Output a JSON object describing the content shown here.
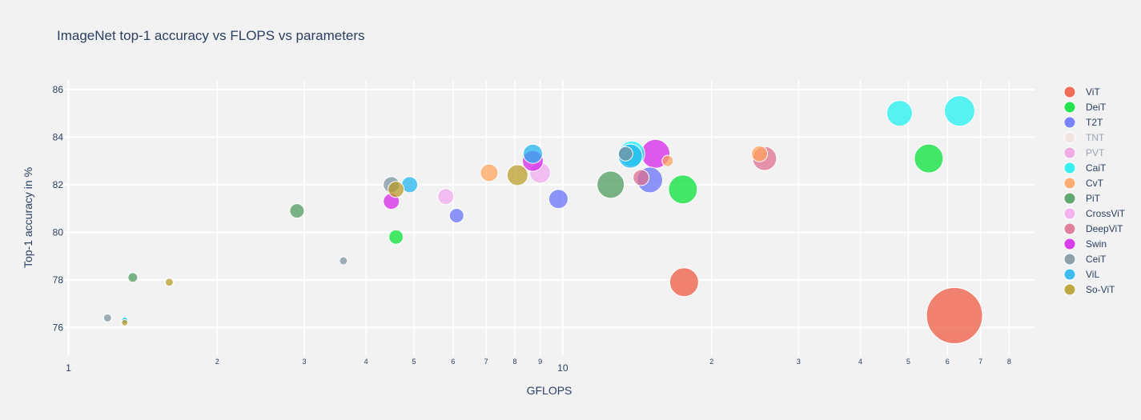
{
  "chart_data": {
    "type": "scatter",
    "title": "ImageNet top-1 accuracy vs FLOPS vs parameters",
    "xlabel": "GFLOPS",
    "ylabel": "Top-1 accuracy in %",
    "x_scale": "log",
    "xlim": [
      0.98,
      90
    ],
    "ylim": [
      74.8,
      86.4
    ],
    "x_major_ticks": [
      {
        "value": 1,
        "label": "1"
      },
      {
        "value": 10,
        "label": "10"
      }
    ],
    "x_minor_ticks": [
      {
        "value": 2,
        "label": "2"
      },
      {
        "value": 3,
        "label": "3"
      },
      {
        "value": 4,
        "label": "4"
      },
      {
        "value": 5,
        "label": "5"
      },
      {
        "value": 6,
        "label": "6"
      },
      {
        "value": 7,
        "label": "7"
      },
      {
        "value": 8,
        "label": "8"
      },
      {
        "value": 9,
        "label": "9"
      },
      {
        "value": 20,
        "label": "2"
      },
      {
        "value": 30,
        "label": "3"
      },
      {
        "value": 40,
        "label": "4"
      },
      {
        "value": 50,
        "label": "5"
      },
      {
        "value": 60,
        "label": "6"
      },
      {
        "value": 70,
        "label": "7"
      },
      {
        "value": 80,
        "label": "8"
      }
    ],
    "y_ticks": [
      {
        "value": 76,
        "label": "76"
      },
      {
        "value": 78,
        "label": "78"
      },
      {
        "value": 80,
        "label": "80"
      },
      {
        "value": 82,
        "label": "82"
      },
      {
        "value": 84,
        "label": "84"
      },
      {
        "value": 86,
        "label": "86"
      }
    ],
    "grid": true,
    "legend_position": "right",
    "size_encoding": "parameters",
    "series": [
      {
        "name": "ViT",
        "color": "#ef553b",
        "legend_muted": false,
        "points": [
          {
            "x": 17.6,
            "y": 77.9,
            "r": 18
          },
          {
            "x": 62,
            "y": 76.5,
            "r": 35
          }
        ]
      },
      {
        "name": "DeiT",
        "color": "#00e032",
        "legend_muted": false,
        "points": [
          {
            "x": 4.6,
            "y": 79.8,
            "r": 9
          },
          {
            "x": 17.5,
            "y": 81.8,
            "r": 18
          },
          {
            "x": 55,
            "y": 83.1,
            "r": 18
          }
        ]
      },
      {
        "name": "T2T",
        "color": "#636efa",
        "legend_muted": false,
        "points": [
          {
            "x": 6.1,
            "y": 80.7,
            "r": 9
          },
          {
            "x": 9.8,
            "y": 81.4,
            "r": 12
          },
          {
            "x": 15,
            "y": 82.2,
            "r": 16
          }
        ]
      },
      {
        "name": "TNT",
        "color": "#f1e0d6",
        "legend_muted": true,
        "points": []
      },
      {
        "name": "PVT",
        "color": "#ed8ee0",
        "legend_muted": true,
        "points": []
      },
      {
        "name": "CaiT",
        "color": "#19f0f0",
        "legend_muted": false,
        "points": [
          {
            "x": 13.8,
            "y": 83.3,
            "r": 16
          },
          {
            "x": 48,
            "y": 85.0,
            "r": 16
          },
          {
            "x": 63.5,
            "y": 85.1,
            "r": 19
          }
        ]
      },
      {
        "name": "CvT",
        "color": "#ffa15a",
        "legend_muted": false,
        "points": [
          {
            "x": 7.1,
            "y": 82.5,
            "r": 11
          },
          {
            "x": 16.3,
            "y": 83.0,
            "r": 7
          },
          {
            "x": 25,
            "y": 83.3,
            "r": 10
          }
        ]
      },
      {
        "name": "PiT",
        "color": "#4a9a5a",
        "legend_muted": false,
        "points": [
          {
            "x": 1.35,
            "y": 78.1,
            "r": 6
          },
          {
            "x": 2.9,
            "y": 80.9,
            "r": 9
          },
          {
            "x": 12.5,
            "y": 82.0,
            "r": 17
          }
        ]
      },
      {
        "name": "CrossViT",
        "color": "#f0a8f0",
        "legend_muted": false,
        "points": [
          {
            "x": 5.8,
            "y": 81.5,
            "r": 10
          },
          {
            "x": 9,
            "y": 82.5,
            "r": 13
          }
        ]
      },
      {
        "name": "DeepViT",
        "color": "#de6c8c",
        "legend_muted": false,
        "points": [
          {
            "x": 14.4,
            "y": 82.3,
            "r": 10
          },
          {
            "x": 25.6,
            "y": 83.1,
            "r": 15
          }
        ]
      },
      {
        "name": "Swin",
        "color": "#d21de8",
        "legend_muted": false,
        "points": [
          {
            "x": 4.5,
            "y": 81.3,
            "r": 10
          },
          {
            "x": 8.7,
            "y": 83.0,
            "r": 13
          },
          {
            "x": 15.4,
            "y": 83.3,
            "r": 18
          }
        ]
      },
      {
        "name": "CeiT",
        "color": "#7a909e",
        "legend_muted": false,
        "points": [
          {
            "x": 1.2,
            "y": 76.4,
            "r": 5
          },
          {
            "x": 3.6,
            "y": 78.8,
            "r": 5
          },
          {
            "x": 4.5,
            "y": 82.0,
            "r": 10
          },
          {
            "x": 13.4,
            "y": 83.3,
            "r": 9
          }
        ]
      },
      {
        "name": "ViL",
        "color": "#1cb3ef",
        "legend_muted": false,
        "points": [
          {
            "x": 1.3,
            "y": 76.3,
            "r": 4
          },
          {
            "x": 4.9,
            "y": 82.0,
            "r": 10
          },
          {
            "x": 8.7,
            "y": 83.3,
            "r": 12
          },
          {
            "x": 13.7,
            "y": 83.2,
            "r": 15
          }
        ]
      },
      {
        "name": "So-ViT",
        "color": "#b89a22",
        "legend_muted": false,
        "points": [
          {
            "x": 1.3,
            "y": 76.2,
            "r": 4
          },
          {
            "x": 1.6,
            "y": 77.9,
            "r": 5
          },
          {
            "x": 4.6,
            "y": 81.8,
            "r": 10
          },
          {
            "x": 8.1,
            "y": 82.4,
            "r": 13
          }
        ]
      }
    ]
  }
}
